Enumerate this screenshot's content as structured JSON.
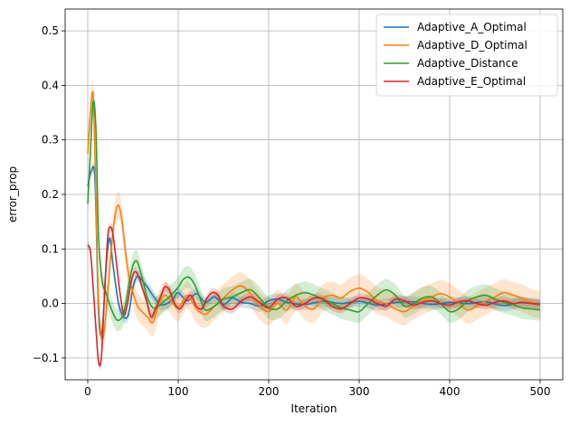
{
  "chart_data": {
    "type": "line",
    "title": "",
    "xlabel": "Iteration",
    "ylabel": "error_prop",
    "xlim": [
      -25,
      525
    ],
    "ylim": [
      -0.14,
      0.54
    ],
    "xticks": [
      0,
      100,
      200,
      300,
      400,
      500
    ],
    "yticks": [
      -0.1,
      0.0,
      0.1,
      0.2,
      0.3,
      0.4,
      0.5
    ],
    "grid": true,
    "legend_position": "top-right",
    "series": [
      {
        "name": "Adaptive_A_Optimal",
        "color": "#1f77b4",
        "x": [
          0,
          4,
          8,
          12,
          16,
          20,
          24,
          28,
          34,
          40,
          45,
          50,
          55,
          60,
          66,
          72,
          80,
          88,
          95,
          100,
          110,
          120,
          130,
          140,
          150,
          160,
          170,
          180,
          190,
          200,
          210,
          220,
          240,
          260,
          280,
          300,
          320,
          340,
          360,
          380,
          400,
          420,
          440,
          460,
          480,
          500
        ],
        "y": [
          0.215,
          0.243,
          0.225,
          -0.02,
          -0.05,
          0.06,
          0.12,
          0.07,
          0.0,
          -0.025,
          -0.02,
          0.03,
          0.05,
          0.042,
          0.03,
          0.015,
          -0.002,
          0.0,
          0.01,
          0.02,
          0.005,
          0.018,
          0.002,
          0.012,
          -0.002,
          0.01,
          0.002,
          0.0,
          -0.005,
          0.005,
          0.008,
          0.002,
          -0.002,
          0.004,
          0.0,
          0.004,
          -0.003,
          0.002,
          0.003,
          -0.002,
          0.002,
          0.0,
          0.003,
          -0.004,
          0.002,
          -0.003
        ],
        "band": 0.01
      },
      {
        "name": "Adaptive_D_Optimal",
        "color": "#ff7f0e",
        "x": [
          0,
          3,
          6,
          9,
          12,
          16,
          20,
          26,
          30,
          34,
          38,
          42,
          46,
          50,
          55,
          60,
          66,
          72,
          78,
          85,
          92,
          100,
          110,
          120,
          130,
          140,
          150,
          160,
          170,
          180,
          190,
          200,
          210,
          220,
          230,
          240,
          250,
          260,
          270,
          280,
          290,
          300,
          310,
          320,
          330,
          340,
          350,
          360,
          370,
          380,
          390,
          400,
          410,
          420,
          430,
          440,
          450,
          460,
          470,
          480,
          490,
          500
        ],
        "y": [
          0.275,
          0.35,
          0.38,
          0.2,
          0.0,
          -0.065,
          -0.02,
          0.1,
          0.16,
          0.18,
          0.15,
          0.09,
          0.045,
          0.02,
          -0.005,
          -0.015,
          -0.025,
          -0.035,
          -0.005,
          0.015,
          0.005,
          -0.008,
          0.015,
          -0.01,
          -0.02,
          -0.005,
          0.01,
          0.025,
          0.032,
          0.018,
          -0.005,
          -0.015,
          0.0,
          -0.012,
          0.012,
          -0.005,
          -0.01,
          0.01,
          0.015,
          0.01,
          0.022,
          0.028,
          0.02,
          0.005,
          0.0,
          -0.01,
          -0.015,
          -0.005,
          0.005,
          0.012,
          0.018,
          0.012,
          0.0,
          -0.012,
          -0.005,
          0.005,
          0.012,
          0.02,
          0.015,
          0.01,
          0.002,
          -0.003
        ],
        "band": 0.025
      },
      {
        "name": "Adaptive_Distance",
        "color": "#2ca02c",
        "x": [
          0,
          3,
          6,
          9,
          12,
          16,
          20,
          26,
          32,
          38,
          42,
          46,
          50,
          54,
          58,
          62,
          66,
          72,
          78,
          85,
          92,
          100,
          106,
          112,
          118,
          124,
          130,
          140,
          150,
          160,
          170,
          180,
          190,
          200,
          210,
          220,
          230,
          240,
          250,
          260,
          270,
          280,
          290,
          300,
          310,
          320,
          330,
          340,
          350,
          360,
          370,
          380,
          390,
          400,
          410,
          420,
          430,
          440,
          450,
          460,
          470,
          480,
          490,
          500
        ],
        "y": [
          0.183,
          0.28,
          0.37,
          0.32,
          0.12,
          0.04,
          0.02,
          -0.01,
          -0.03,
          -0.025,
          0.0,
          0.04,
          0.07,
          0.078,
          0.06,
          0.035,
          0.01,
          -0.008,
          -0.005,
          0.005,
          0.015,
          0.03,
          0.045,
          0.048,
          0.035,
          0.01,
          -0.012,
          -0.005,
          0.008,
          0.012,
          0.02,
          0.025,
          0.01,
          -0.008,
          -0.01,
          0.005,
          0.015,
          0.02,
          0.015,
          0.008,
          0.0,
          -0.008,
          -0.012,
          -0.015,
          0.0,
          0.015,
          0.025,
          0.015,
          -0.005,
          0.0,
          0.01,
          0.012,
          0.0,
          -0.015,
          -0.01,
          0.005,
          0.012,
          0.015,
          0.008,
          0.002,
          -0.002,
          -0.008,
          -0.01,
          -0.012
        ],
        "band": 0.02
      },
      {
        "name": "Adaptive_E_Optimal",
        "color": "#d62728",
        "x": [
          0,
          3,
          6,
          9,
          12,
          15,
          18,
          22,
          25,
          28,
          32,
          36,
          40,
          44,
          48,
          52,
          56,
          60,
          65,
          70,
          75,
          80,
          85,
          90,
          96,
          102,
          108,
          114,
          120,
          126,
          132,
          138,
          144,
          150,
          160,
          170,
          180,
          190,
          200,
          210,
          220,
          230,
          240,
          250,
          260,
          270,
          280,
          290,
          300,
          310,
          320,
          330,
          340,
          350,
          360,
          370,
          380,
          390,
          400,
          410,
          420,
          430,
          440,
          450,
          460,
          470,
          480,
          490,
          500
        ],
        "y": [
          0.107,
          0.095,
          0.03,
          -0.045,
          -0.108,
          -0.1,
          0.0,
          0.12,
          0.14,
          0.125,
          0.07,
          0.015,
          -0.02,
          0.0,
          0.04,
          0.058,
          0.05,
          0.03,
          0.005,
          -0.025,
          -0.01,
          0.01,
          0.03,
          0.025,
          0.0,
          -0.01,
          0.005,
          0.015,
          -0.005,
          -0.01,
          0.01,
          0.02,
          0.015,
          -0.005,
          -0.01,
          0.005,
          0.012,
          0.002,
          -0.008,
          0.008,
          0.01,
          -0.005,
          0.0,
          0.01,
          0.008,
          -0.005,
          -0.01,
          0.0,
          0.01,
          0.008,
          0.0,
          -0.005,
          0.008,
          0.005,
          -0.003,
          0.002,
          0.005,
          0.0,
          -0.003,
          0.003,
          0.005,
          0.0,
          -0.003,
          0.002,
          0.005,
          0.0,
          0.002,
          0.0,
          -0.001
        ],
        "band": 0.008
      }
    ]
  }
}
